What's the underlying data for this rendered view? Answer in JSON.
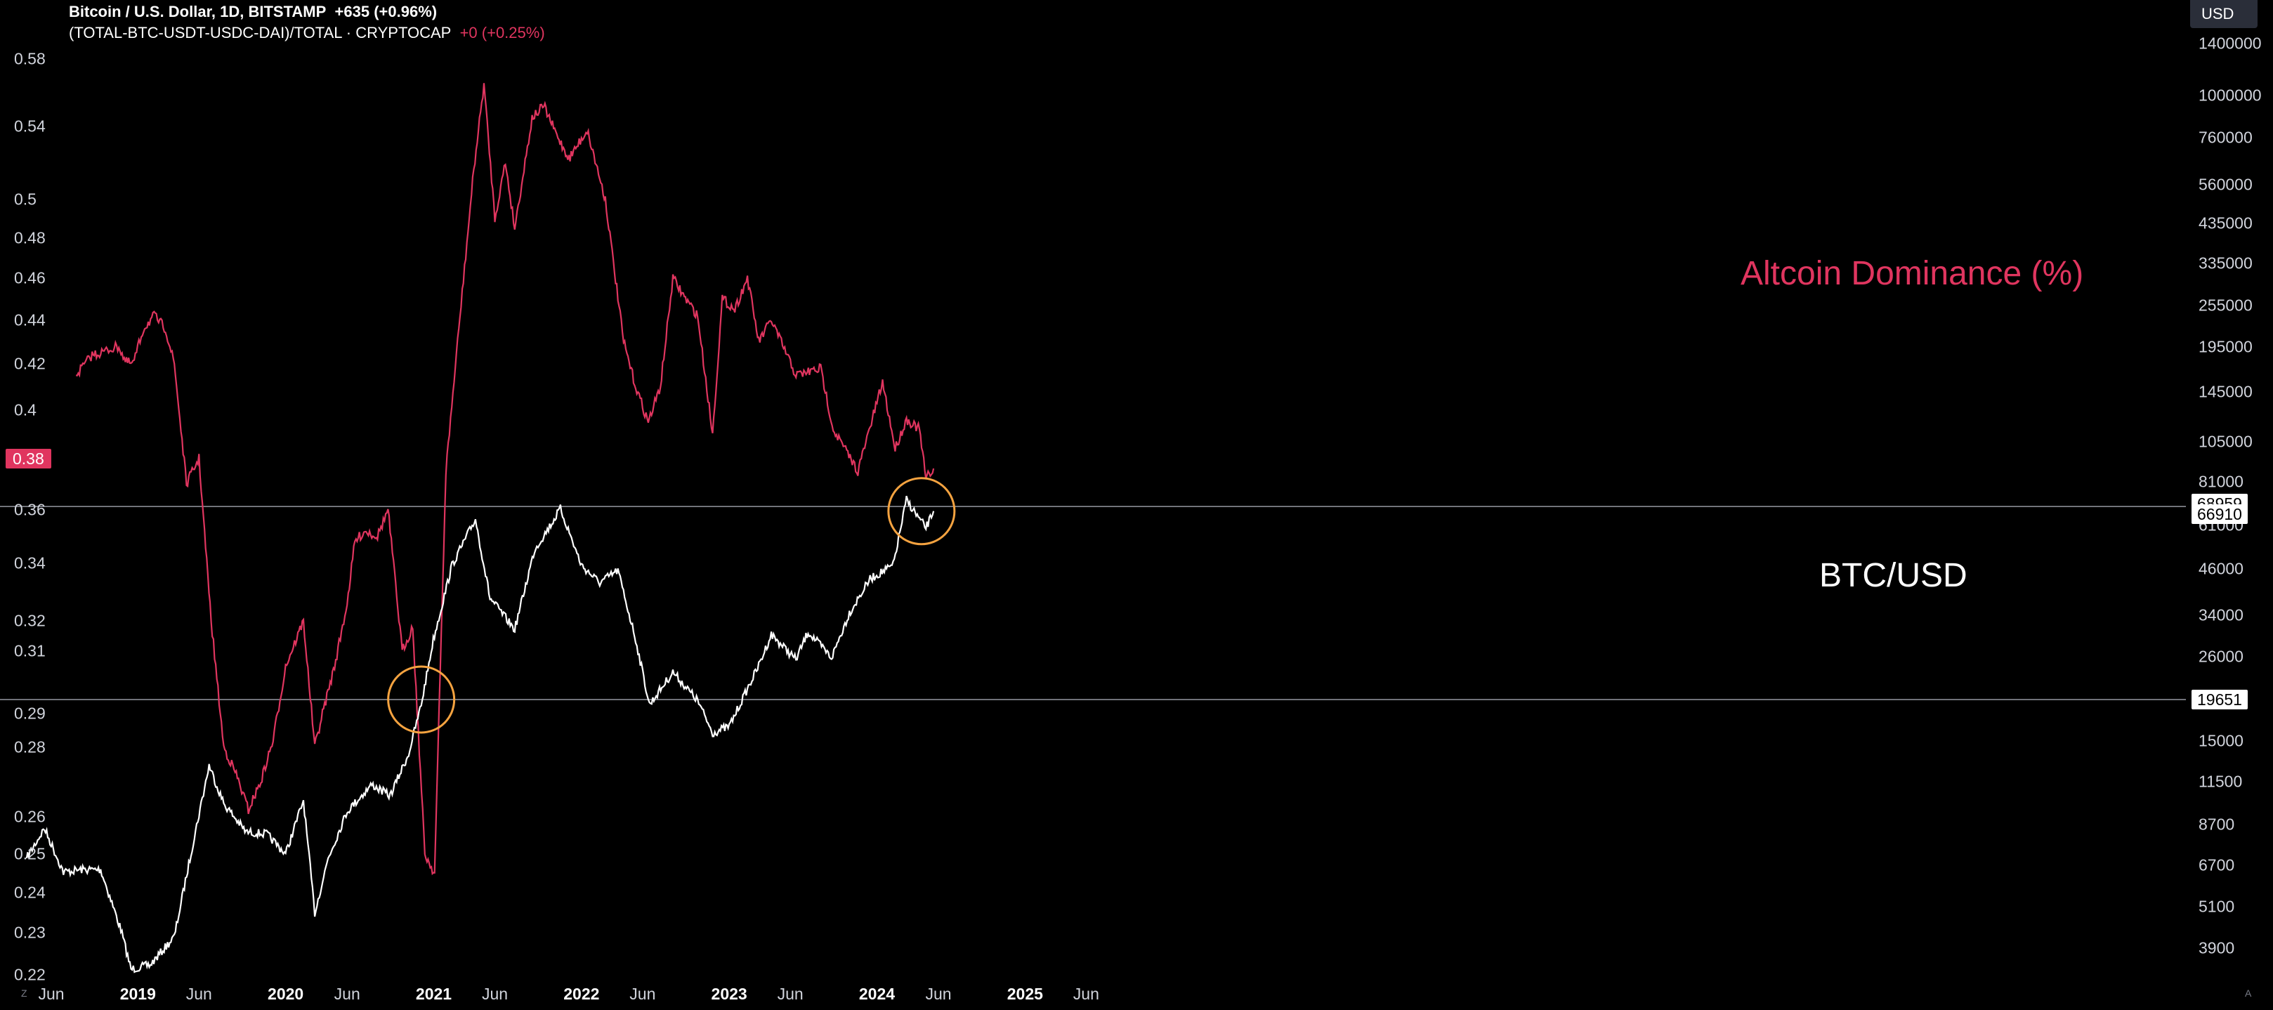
{
  "header": {
    "series1_title": "Bitcoin / U.S. Dollar, 1D, BITSTAMP",
    "series1_change": "+635 (+0.96%)",
    "series2_title": "(TOTAL-BTC-USDT-USDC-DAI)/TOTAL · CRYPTOCAP",
    "series2_change": "+0 (+0.25%)",
    "currency": "USD"
  },
  "chart_data": {
    "type": "line",
    "left_axis": {
      "ticks": [
        "0.58",
        "0.54",
        "0.5",
        "0.48",
        "0.46",
        "0.44",
        "0.42",
        "0.4",
        "0.38",
        "0.36",
        "0.34",
        "0.32",
        "0.31",
        "0.29",
        "0.28",
        "0.26",
        "0.25",
        "0.24",
        "0.23",
        "0.22"
      ],
      "current_label": "0.38"
    },
    "right_axis": {
      "ticks": [
        "1400000",
        "1000000",
        "760000",
        "560000",
        "435000",
        "335000",
        "255000",
        "195000",
        "145000",
        "105000",
        "81000",
        "61000",
        "46000",
        "34000",
        "26000",
        "19651",
        "15000",
        "11500",
        "8700",
        "6700",
        "5100",
        "3900"
      ],
      "price_labels": [
        "68959",
        "66910",
        "19651"
      ]
    },
    "x_axis": {
      "ticks": [
        "Jun",
        "2019",
        "Jun",
        "2020",
        "Jun",
        "2021",
        "Jun",
        "2022",
        "Jun",
        "2023",
        "Jun",
        "2024",
        "Jun",
        "2025",
        "Jun"
      ]
    },
    "annotations": {
      "altcoin": "Altcoin Dominance (%)",
      "btc": "BTC/USD"
    },
    "series": [
      {
        "name": "BTC/USD",
        "color": "#ffffff",
        "x": [
          "2018-04-01",
          "2018-05-15",
          "2018-07-01",
          "2018-08-15",
          "2018-10-01",
          "2018-11-20",
          "2018-12-15",
          "2019-02-01",
          "2019-04-01",
          "2019-05-15",
          "2019-06-26",
          "2019-08-01",
          "2019-09-25",
          "2019-11-15",
          "2020-01-01",
          "2020-02-14",
          "2020-03-13",
          "2020-04-15",
          "2020-06-01",
          "2020-08-01",
          "2020-09-15",
          "2020-10-31",
          "2020-12-01",
          "2020-12-31",
          "2021-02-15",
          "2021-04-14",
          "2021-05-20",
          "2021-07-20",
          "2021-09-07",
          "2021-10-20",
          "2021-11-10",
          "2022-01-01",
          "2022-02-15",
          "2022-04-01",
          "2022-05-15",
          "2022-06-18",
          "2022-08-15",
          "2022-10-15",
          "2022-11-21",
          "2023-01-01",
          "2023-03-15",
          "2023-04-15",
          "2023-06-15",
          "2023-07-15",
          "2023-09-11",
          "2023-10-25",
          "2023-12-15",
          "2024-02-10",
          "2024-03-14",
          "2024-04-15",
          "2024-05-01",
          "2024-05-20"
        ],
        "values": [
          7000,
          8500,
          6400,
          6500,
          6500,
          4400,
          3400,
          3500,
          4200,
          7500,
          12800,
          10000,
          8300,
          8200,
          7200,
          10200,
          4900,
          7000,
          9500,
          11300,
          10500,
          13800,
          19000,
          29000,
          47000,
          63500,
          38000,
          31000,
          52000,
          62000,
          68000,
          47000,
          42000,
          45500,
          29000,
          19000,
          23500,
          19500,
          15800,
          16500,
          24500,
          30000,
          25500,
          30500,
          25800,
          34500,
          43000,
          47000,
          72000,
          63500,
          60000,
          66910
        ]
      },
      {
        "name": "Altcoin Dominance (%)",
        "color": "#e0355f",
        "x": [
          "2018-08-01",
          "2018-09-10",
          "2018-10-01",
          "2018-11-15",
          "2018-12-01",
          "2018-12-20",
          "2019-01-15",
          "2019-02-10",
          "2019-03-10",
          "2019-04-01",
          "2019-05-01",
          "2019-06-01",
          "2019-07-01",
          "2019-08-01",
          "2019-09-01",
          "2019-10-01",
          "2019-11-01",
          "2019-12-01",
          "2020-01-01",
          "2020-02-14",
          "2020-03-13",
          "2020-04-01",
          "2020-05-01",
          "2020-06-01",
          "2020-06-20",
          "2020-07-15",
          "2020-08-15",
          "2020-09-10",
          "2020-10-15",
          "2020-11-10",
          "2020-12-10",
          "2021-01-03",
          "2021-01-31",
          "2021-03-01",
          "2021-04-10",
          "2021-05-05",
          "2021-06-01",
          "2021-06-27",
          "2021-07-20",
          "2021-09-01",
          "2021-09-30",
          "2021-11-01",
          "2021-12-01",
          "2022-01-15",
          "2022-03-01",
          "2022-04-15",
          "2022-05-15",
          "2022-06-15",
          "2022-07-15",
          "2022-08-15",
          "2022-09-15",
          "2022-10-15",
          "2022-11-21",
          "2022-12-15",
          "2023-01-15",
          "2023-02-15",
          "2023-03-15",
          "2023-04-15",
          "2023-06-15",
          "2023-08-15",
          "2023-09-15",
          "2023-11-15",
          "2024-01-15",
          "2024-02-15",
          "2024-03-14",
          "2024-04-15",
          "2024-05-01",
          "2024-05-20"
        ],
        "values": [
          0.415,
          0.424,
          0.425,
          0.428,
          0.421,
          0.42,
          0.436,
          0.442,
          0.436,
          0.42,
          0.37,
          0.38,
          0.32,
          0.28,
          0.272,
          0.262,
          0.27,
          0.282,
          0.305,
          0.32,
          0.28,
          0.29,
          0.305,
          0.326,
          0.348,
          0.352,
          0.35,
          0.36,
          0.31,
          0.318,
          0.25,
          0.245,
          0.375,
          0.43,
          0.516,
          0.565,
          0.49,
          0.52,
          0.485,
          0.545,
          0.552,
          0.535,
          0.522,
          0.538,
          0.5,
          0.43,
          0.41,
          0.395,
          0.41,
          0.46,
          0.45,
          0.442,
          0.39,
          0.45,
          0.445,
          0.46,
          0.43,
          0.44,
          0.415,
          0.418,
          0.392,
          0.375,
          0.412,
          0.384,
          0.396,
          0.392,
          0.372,
          0.376
        ]
      }
    ],
    "reference_lines": [
      68959,
      19651
    ],
    "highlights": [
      {
        "date": "2020-12-01",
        "value": 19651
      },
      {
        "date": "2024-04-20",
        "value": 66910
      }
    ]
  }
}
